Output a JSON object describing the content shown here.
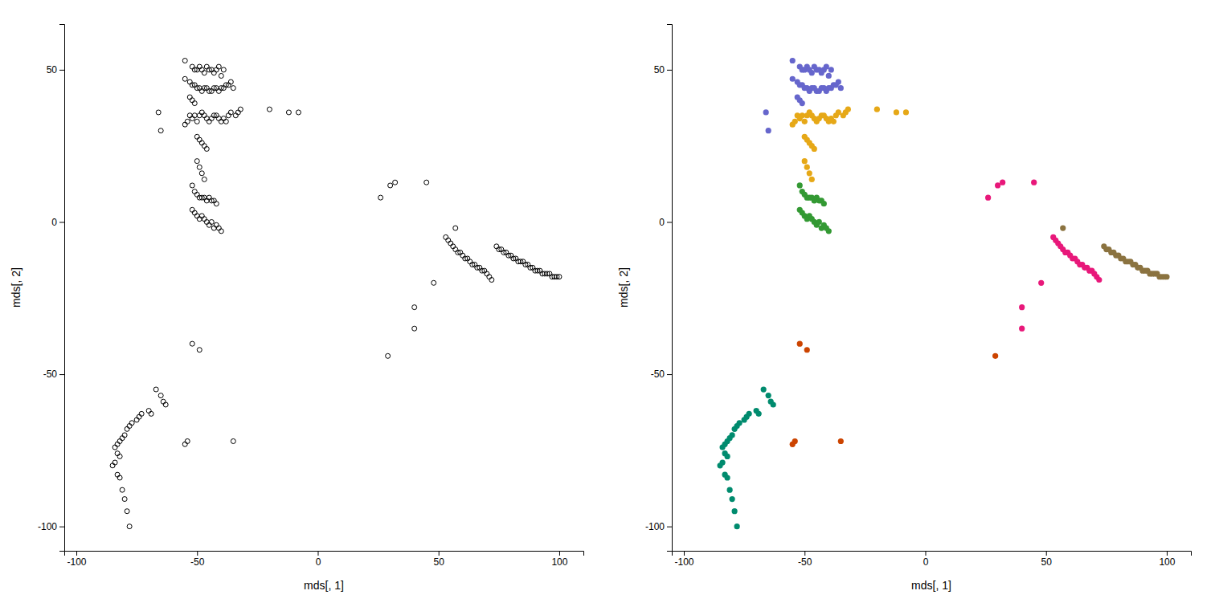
{
  "chart_data": [
    {
      "type": "scatter",
      "xlabel": "mds[, 1]",
      "ylabel": "mds[, 2]",
      "xlim": [
        -105,
        110
      ],
      "ylim": [
        -108,
        65
      ],
      "xticks": [
        -100,
        -50,
        0,
        50,
        100
      ],
      "yticks": [
        -100,
        -50,
        0,
        50
      ],
      "grid": false,
      "color": "#000000",
      "marker": "open-circle",
      "x": [
        -55,
        -52,
        -51,
        -50,
        -49,
        -48,
        -47,
        -46,
        -45,
        -44,
        -43,
        -42,
        -41,
        -40,
        -39,
        -55,
        -53,
        -52,
        -51,
        -50,
        -49,
        -48,
        -47,
        -46,
        -45,
        -44,
        -43,
        -42,
        -41,
        -40,
        -39,
        -38,
        -37,
        -36,
        -35,
        -53,
        -52,
        -51,
        -66,
        -65,
        -55,
        -54,
        -53,
        -52,
        -51,
        -50,
        -49,
        -48,
        -47,
        -46,
        -45,
        -44,
        -43,
        -42,
        -41,
        -40,
        -39,
        -38,
        -37,
        -36,
        -34,
        -33,
        -32,
        -20,
        -12,
        -8,
        -50,
        -49,
        -48,
        -47,
        -46,
        -50,
        -49,
        -48,
        -47,
        -52,
        -51,
        -50,
        -49,
        -48,
        -47,
        -46,
        -45,
        -44,
        -43,
        -42,
        -52,
        -51,
        -50,
        -49,
        -48,
        -47,
        -46,
        -45,
        -44,
        -43,
        -42,
        -41,
        -40,
        -52,
        -49,
        -35,
        29,
        -67,
        -65,
        -64,
        -63,
        -70,
        -69,
        -73,
        -74,
        -75,
        -77,
        -78,
        -79,
        -80,
        -81,
        -82,
        -83,
        -84,
        -83,
        -82,
        -84,
        -85,
        -83,
        -82,
        -81,
        -80,
        -79,
        -78,
        -55,
        -54,
        26,
        30,
        32,
        45,
        53,
        54,
        55,
        56,
        57,
        58,
        59,
        60,
        61,
        62,
        63,
        64,
        65,
        66,
        67,
        68,
        69,
        70,
        71,
        72,
        40,
        48,
        40,
        74,
        75,
        76,
        77,
        78,
        79,
        80,
        81,
        82,
        83,
        84,
        85,
        86,
        87,
        88,
        89,
        90,
        91,
        92,
        93,
        94,
        95,
        96,
        97,
        98,
        99,
        100,
        57
      ],
      "values": [
        53,
        51,
        50,
        50,
        51,
        50,
        49,
        51,
        50,
        50,
        49,
        50,
        51,
        48,
        50,
        47,
        46,
        45,
        45,
        44,
        44,
        43,
        44,
        44,
        43,
        43,
        44,
        44,
        43,
        44,
        44,
        45,
        45,
        46,
        44,
        41,
        40,
        39,
        36,
        30,
        32,
        33,
        35,
        34,
        35,
        33,
        35,
        36,
        35,
        34,
        33,
        34,
        35,
        35,
        34,
        33,
        34,
        33,
        35,
        36,
        35,
        36,
        37,
        37,
        36,
        36,
        28,
        27,
        26,
        25,
        24,
        20,
        18,
        16,
        14,
        12,
        10,
        9,
        8,
        8,
        8,
        7,
        8,
        7,
        7,
        6,
        4,
        3,
        2,
        1,
        2,
        1,
        0,
        -1,
        0,
        -2,
        -1,
        -2,
        -3,
        -40,
        -42,
        -72,
        -44,
        -55,
        -57,
        -59,
        -60,
        -62,
        -63,
        -63,
        -64,
        -65,
        -66,
        -67,
        -68,
        -70,
        -71,
        -72,
        -73,
        -74,
        -76,
        -77,
        -79,
        -80,
        -83,
        -84,
        -88,
        -91,
        -95,
        -100,
        -73,
        -72,
        8,
        12,
        13,
        13,
        -5,
        -6,
        -7,
        -8,
        -9,
        -10,
        -10,
        -11,
        -12,
        -12,
        -13,
        -14,
        -14,
        -15,
        -15,
        -16,
        -16,
        -17,
        -18,
        -19,
        -28,
        -20,
        -35,
        -8,
        -9,
        -9,
        -10,
        -10,
        -11,
        -11,
        -12,
        -12,
        -13,
        -13,
        -13,
        -14,
        -14,
        -15,
        -15,
        -16,
        -16,
        -16,
        -17,
        -17,
        -17,
        -17,
        -18,
        -18,
        -18,
        -18,
        -2
      ]
    },
    {
      "type": "scatter",
      "xlabel": "mds[, 1]",
      "ylabel": "mds[, 2]",
      "xlim": [
        -105,
        110
      ],
      "ylim": [
        -108,
        65
      ],
      "xticks": [
        -100,
        -50,
        0,
        50,
        100
      ],
      "yticks": [
        -100,
        -50,
        0,
        50
      ],
      "grid": false,
      "marker": "circle",
      "series": [
        {
          "color": "#6666CC",
          "x": [
            -55,
            -52,
            -51,
            -50,
            -49,
            -48,
            -47,
            -46,
            -45,
            -44,
            -43,
            -42,
            -41,
            -40,
            -39,
            -55,
            -53,
            -52,
            -51,
            -50,
            -49,
            -48,
            -47,
            -46,
            -45,
            -44,
            -43,
            -42,
            -41,
            -40,
            -39,
            -38,
            -37,
            -36,
            -35,
            -53,
            -52,
            -51,
            -66,
            -65
          ],
          "values": [
            53,
            51,
            50,
            50,
            51,
            50,
            49,
            51,
            50,
            50,
            49,
            50,
            51,
            48,
            50,
            47,
            46,
            45,
            45,
            44,
            44,
            43,
            44,
            44,
            43,
            43,
            44,
            44,
            43,
            44,
            44,
            45,
            45,
            46,
            44,
            41,
            40,
            39,
            36,
            30
          ]
        },
        {
          "color": "#E6A817",
          "x": [
            -55,
            -54,
            -53,
            -52,
            -51,
            -50,
            -49,
            -48,
            -47,
            -46,
            -45,
            -44,
            -43,
            -42,
            -41,
            -40,
            -39,
            -38,
            -37,
            -36,
            -34,
            -33,
            -32,
            -20,
            -12,
            -8,
            -50,
            -49,
            -48,
            -47,
            -46,
            -50,
            -49,
            -48,
            -47
          ],
          "values": [
            32,
            33,
            35,
            34,
            35,
            33,
            35,
            36,
            35,
            34,
            33,
            34,
            35,
            35,
            34,
            33,
            34,
            33,
            35,
            36,
            35,
            36,
            37,
            37,
            36,
            36,
            28,
            27,
            26,
            25,
            24,
            20,
            18,
            16,
            14
          ]
        },
        {
          "color": "#339933",
          "x": [
            -52,
            -51,
            -50,
            -49,
            -48,
            -47,
            -46,
            -45,
            -44,
            -43,
            -42,
            -52,
            -51,
            -50,
            -49,
            -48,
            -47,
            -46,
            -45,
            -44,
            -43,
            -42,
            -41,
            -40
          ],
          "values": [
            12,
            10,
            9,
            8,
            8,
            8,
            7,
            8,
            7,
            7,
            6,
            4,
            3,
            2,
            1,
            2,
            1,
            0,
            -1,
            0,
            -2,
            -1,
            -2,
            -3
          ]
        },
        {
          "color": "#008B6E",
          "x": [
            -67,
            -65,
            -64,
            -63,
            -70,
            -69,
            -73,
            -74,
            -75,
            -77,
            -78,
            -79,
            -80,
            -81,
            -82,
            -83,
            -84,
            -83,
            -82,
            -84,
            -85,
            -83,
            -82,
            -81,
            -80,
            -79,
            -78
          ],
          "values": [
            -55,
            -57,
            -59,
            -60,
            -62,
            -63,
            -63,
            -64,
            -65,
            -66,
            -67,
            -68,
            -70,
            -71,
            -72,
            -73,
            -74,
            -76,
            -77,
            -79,
            -80,
            -83,
            -84,
            -88,
            -91,
            -95,
            -100
          ]
        },
        {
          "color": "#CC4400",
          "x": [
            -52,
            -49,
            -35,
            29,
            -55,
            -54
          ],
          "values": [
            -40,
            -42,
            -72,
            -44,
            -73,
            -72
          ]
        },
        {
          "color": "#E8187A",
          "x": [
            26,
            30,
            32,
            45,
            53,
            54,
            55,
            56,
            57,
            58,
            59,
            60,
            61,
            62,
            63,
            64,
            65,
            66,
            67,
            68,
            69,
            70,
            71,
            72,
            40,
            48,
            40
          ],
          "values": [
            8,
            12,
            13,
            13,
            -5,
            -6,
            -7,
            -8,
            -9,
            -10,
            -10,
            -11,
            -12,
            -12,
            -13,
            -14,
            -14,
            -15,
            -15,
            -16,
            -16,
            -17,
            -18,
            -19,
            -28,
            -20,
            -35
          ]
        },
        {
          "color": "#8B7340",
          "x": [
            74,
            75,
            76,
            77,
            78,
            79,
            80,
            81,
            82,
            83,
            84,
            85,
            86,
            87,
            88,
            89,
            90,
            91,
            92,
            93,
            94,
            95,
            96,
            97,
            98,
            99,
            100,
            57
          ],
          "values": [
            -8,
            -9,
            -9,
            -10,
            -10,
            -11,
            -11,
            -12,
            -12,
            -13,
            -13,
            -13,
            -14,
            -14,
            -15,
            -15,
            -16,
            -16,
            -16,
            -17,
            -17,
            -17,
            -17,
            -18,
            -18,
            -18,
            -18,
            -2
          ]
        }
      ]
    }
  ]
}
